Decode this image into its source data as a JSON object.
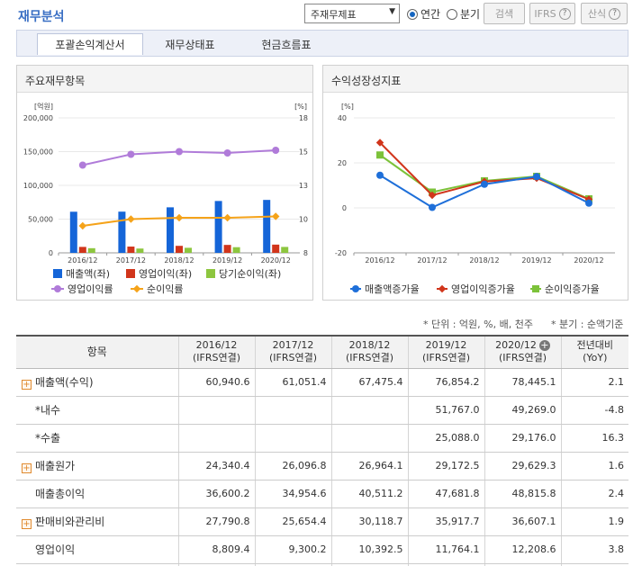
{
  "page_title": "재무분석",
  "controls": {
    "report_select": "주재무제표",
    "radio_annual": "연간",
    "radio_quarter": "분기",
    "search_btn": "검색",
    "ifrs_btn": "IFRS",
    "formula_btn": "산식"
  },
  "tabs": [
    "포괄손익계산서",
    "재무상태표",
    "현금흐름표"
  ],
  "left_chart": {
    "title": "주요재무항목",
    "left_unit": "[억원]",
    "right_unit": "[%]",
    "legend": [
      "매출액(좌)",
      "영업이익(좌)",
      "당기순이익(좌)",
      "영업이익률",
      "순이익률"
    ],
    "colors": {
      "sales": "#1565d8",
      "op": "#d1351b",
      "net": "#8dc63f",
      "op_margin": "#b07bd9",
      "net_margin": "#f5a31a"
    }
  },
  "right_chart": {
    "title": "수익성장성지표",
    "unit": "[%]",
    "legend": [
      "매출액증가율",
      "영업이익증가율",
      "순이익증가율"
    ],
    "colors": {
      "sales_g": "#1e6fd9",
      "op_g": "#d1351b",
      "net_g": "#7cc23a"
    }
  },
  "chart_data": [
    {
      "type": "bar",
      "title": "주요재무항목",
      "categories": [
        "2016/12",
        "2017/12",
        "2018/12",
        "2019/12",
        "2020/12"
      ],
      "ylim": [
        0,
        200000
      ],
      "y2lim": [
        8,
        18
      ],
      "y_ticks": [
        "0",
        "50,000",
        "100,000",
        "150,000",
        "200,000"
      ],
      "y2_ticks": [
        "8",
        "10",
        "13",
        "15",
        "18"
      ],
      "series": [
        {
          "name": "매출액(좌)",
          "axis": "left",
          "values": [
            60940.6,
            61051.4,
            67475.4,
            76854.2,
            78445.1
          ]
        },
        {
          "name": "영업이익(좌)",
          "axis": "left",
          "values": [
            8809.4,
            9300.2,
            10392.5,
            11764.1,
            12208.6
          ]
        },
        {
          "name": "당기순이익(좌)",
          "axis": "left",
          "values": [
            6900,
            6400,
            7500,
            8400,
            8800
          ]
        },
        {
          "name": "영업이익률",
          "axis": "right",
          "type": "line",
          "values": [
            14.5,
            15.3,
            15.5,
            15.4,
            15.6
          ]
        },
        {
          "name": "순이익률",
          "axis": "right",
          "type": "line",
          "values": [
            10.0,
            10.5,
            10.6,
            10.6,
            10.7
          ]
        }
      ]
    },
    {
      "type": "line",
      "title": "수익성장성지표",
      "categories": [
        "2016/12",
        "2017/12",
        "2018/12",
        "2019/12",
        "2020/12"
      ],
      "ylim": [
        -20,
        40
      ],
      "y_ticks": [
        "-20",
        "0",
        "20",
        "40"
      ],
      "series": [
        {
          "name": "매출액증가율",
          "values": [
            14.5,
            0.2,
            10.5,
            13.9,
            2.1
          ]
        },
        {
          "name": "영업이익증가율",
          "values": [
            29.0,
            5.6,
            11.7,
            13.2,
            3.8
          ]
        },
        {
          "name": "순이익증가율",
          "values": [
            23.5,
            7.0,
            12.0,
            14.0,
            4.0
          ]
        }
      ]
    }
  ],
  "unit_note_left": "* 단위 : 억원, %, 배, 천주",
  "unit_note_right": "* 분기 : 순액기준",
  "table": {
    "header": {
      "item": "항목",
      "cols": [
        [
          "2016/12",
          "(IFRS연결)"
        ],
        [
          "2017/12",
          "(IFRS연결)"
        ],
        [
          "2018/12",
          "(IFRS연결)"
        ],
        [
          "2019/12",
          "(IFRS연결)"
        ],
        [
          "2020/12",
          "(IFRS연결)"
        ]
      ],
      "yoy": [
        "전년대비",
        "(YoY)"
      ]
    },
    "rows": [
      {
        "label": "매출액(수익)",
        "expand": true,
        "indent": false,
        "values": [
          "60,940.6",
          "61,051.4",
          "67,475.4",
          "76,854.2",
          "78,445.1"
        ],
        "yoy": "2.1",
        "neg": false
      },
      {
        "label": "*내수",
        "expand": false,
        "indent": true,
        "values": [
          "",
          "",
          "",
          "51,767.0",
          "49,269.0"
        ],
        "yoy": "-4.8",
        "neg": true
      },
      {
        "label": "*수출",
        "expand": false,
        "indent": true,
        "values": [
          "",
          "",
          "",
          "25,088.0",
          "29,176.0"
        ],
        "yoy": "16.3",
        "neg": false
      },
      {
        "label": "매출원가",
        "expand": true,
        "indent": false,
        "values": [
          "24,340.4",
          "26,096.8",
          "26,964.1",
          "29,172.5",
          "29,629.3"
        ],
        "yoy": "1.6",
        "neg": false
      },
      {
        "label": "매출총이익",
        "expand": false,
        "indent": true,
        "values": [
          "36,600.2",
          "34,954.6",
          "40,511.2",
          "47,681.8",
          "48,815.8"
        ],
        "yoy": "2.4",
        "neg": false
      },
      {
        "label": "판매비와관리비",
        "expand": true,
        "indent": false,
        "values": [
          "27,790.8",
          "25,654.4",
          "30,118.7",
          "35,917.7",
          "36,607.1"
        ],
        "yoy": "1.9",
        "neg": false
      },
      {
        "label": "영업이익",
        "expand": false,
        "indent": true,
        "values": [
          "8,809.4",
          "9,300.2",
          "10,392.5",
          "11,764.1",
          "12,208.6"
        ],
        "yoy": "3.8",
        "neg": false
      },
      {
        "label": "",
        "expand": false,
        "indent": false,
        "values": [
          "",
          "",
          "",
          "",
          ""
        ],
        "yoy": "",
        "neg": false
      }
    ]
  }
}
